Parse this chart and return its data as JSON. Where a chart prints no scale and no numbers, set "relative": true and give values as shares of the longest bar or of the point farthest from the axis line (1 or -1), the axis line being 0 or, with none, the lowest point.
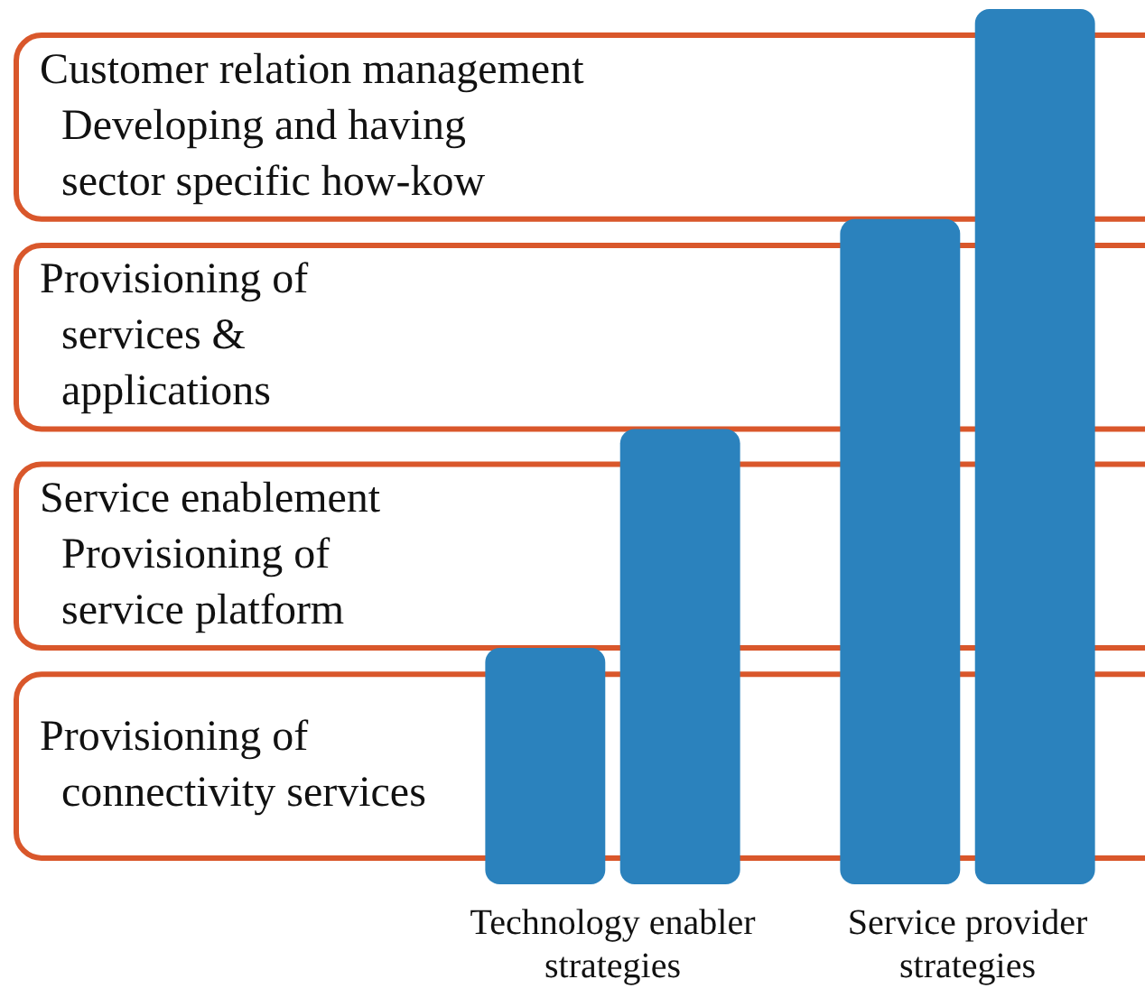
{
  "chart_data": {
    "type": "bar",
    "relative": true,
    "categories": [
      "Technology enabler\nstrategies",
      "Service provider\nstrategies"
    ],
    "series": [
      {
        "color": "#2b82bd",
        "values": [
          0.27,
          0.76
        ]
      },
      {
        "color": "#2b82bd",
        "values": [
          0.52,
          1.0
        ]
      }
    ],
    "bands": [
      {
        "axis": "y",
        "from": 0.03,
        "to": 0.24,
        "label": "Provisioning of\nconnectivity services",
        "color": "#d9572b"
      },
      {
        "axis": "y",
        "from": 0.27,
        "to": 0.48,
        "label": "Service enablement\nProvisioning of\nservice platform",
        "color": "#d9572b"
      },
      {
        "axis": "y",
        "from": 0.52,
        "to": 0.73,
        "label": "Provisioning of\nservices &\napplications",
        "color": "#d9572b"
      },
      {
        "axis": "y",
        "from": 0.76,
        "to": 0.97,
        "label": "Customer relation management\nDeveloping and having\nsector specific how-kow",
        "color": "#d9572b"
      }
    ],
    "grid": false,
    "legend": false
  }
}
